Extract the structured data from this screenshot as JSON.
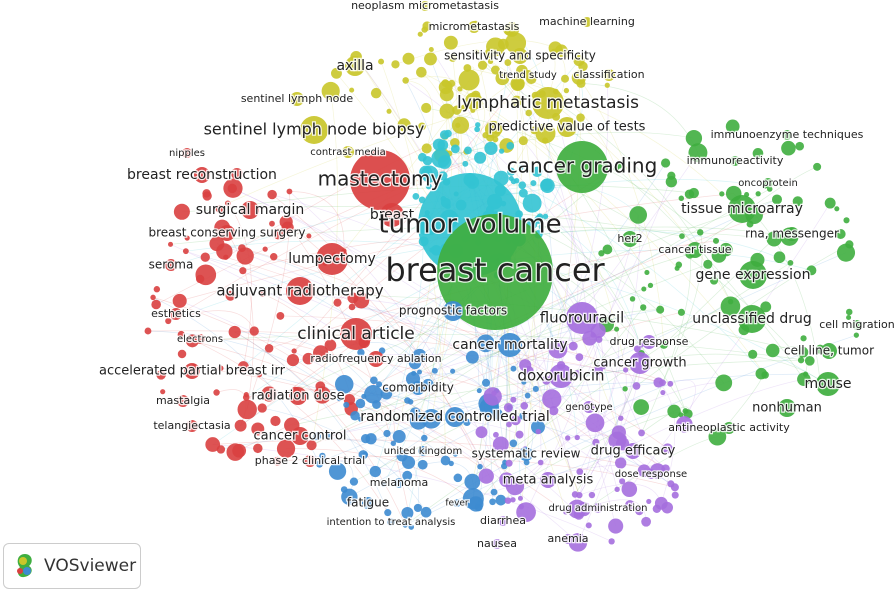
{
  "clusters": [
    {
      "color": "#d94040",
      "nodes": [
        "nipples",
        "breast reconstruction",
        "mastectomy",
        "surgical margin",
        "breast",
        "breast conserving surgery",
        "lumpectomy",
        "seroma",
        "adjuvant radiotherapy",
        "esthetics",
        "clinical article",
        "electrons",
        "radiofrequency ablation",
        "accelerated partial breast irr",
        "mastalgia",
        "radiation dose",
        "telangiectasia",
        "cancer control",
        "phase 2 clinical trial"
      ]
    },
    {
      "color": "#c9c62a",
      "nodes": [
        "neoplasm micrometastasis",
        "micrometastasis",
        "machine learning",
        "sensitivity and specificity",
        "axilla",
        "trend study",
        "classification",
        "lymphatic metastasis",
        "sentinel lymph node",
        "predictive value of tests",
        "sentinel lymph node biopsy",
        "contrast media"
      ]
    },
    {
      "color": "#33c3d3",
      "nodes": [
        "tumor volume"
      ]
    },
    {
      "color": "#3fae3f",
      "nodes": [
        "breast cancer",
        "cancer grading",
        "immunoenzyme techniques",
        "immunoreactivity",
        "oncoprotein",
        "tissue microarray",
        "rna, messenger",
        "her2",
        "cancer tissue",
        "gene expression",
        "unclassified drug",
        "cell migration",
        "cell line, tumor",
        "mouse",
        "nonhuman",
        "antineoplastic activity"
      ]
    },
    {
      "color": "#3d8bd0",
      "nodes": [
        "prognostic factors",
        "cancer mortality",
        "comorbidity",
        "randomized controlled trial",
        "united kingdom",
        "systematic review",
        "melanoma",
        "fatigue",
        "fever",
        "intention to treat analysis"
      ]
    },
    {
      "color": "#a56fde",
      "nodes": [
        "fluorouracil",
        "drug response",
        "cancer growth",
        "doxorubicin",
        "genotype",
        "drug efficacy",
        "dose response",
        "meta analysis",
        "drug administration",
        "diarrhea",
        "anemia",
        "nausea"
      ]
    }
  ],
  "brand": "VOSviewer"
}
